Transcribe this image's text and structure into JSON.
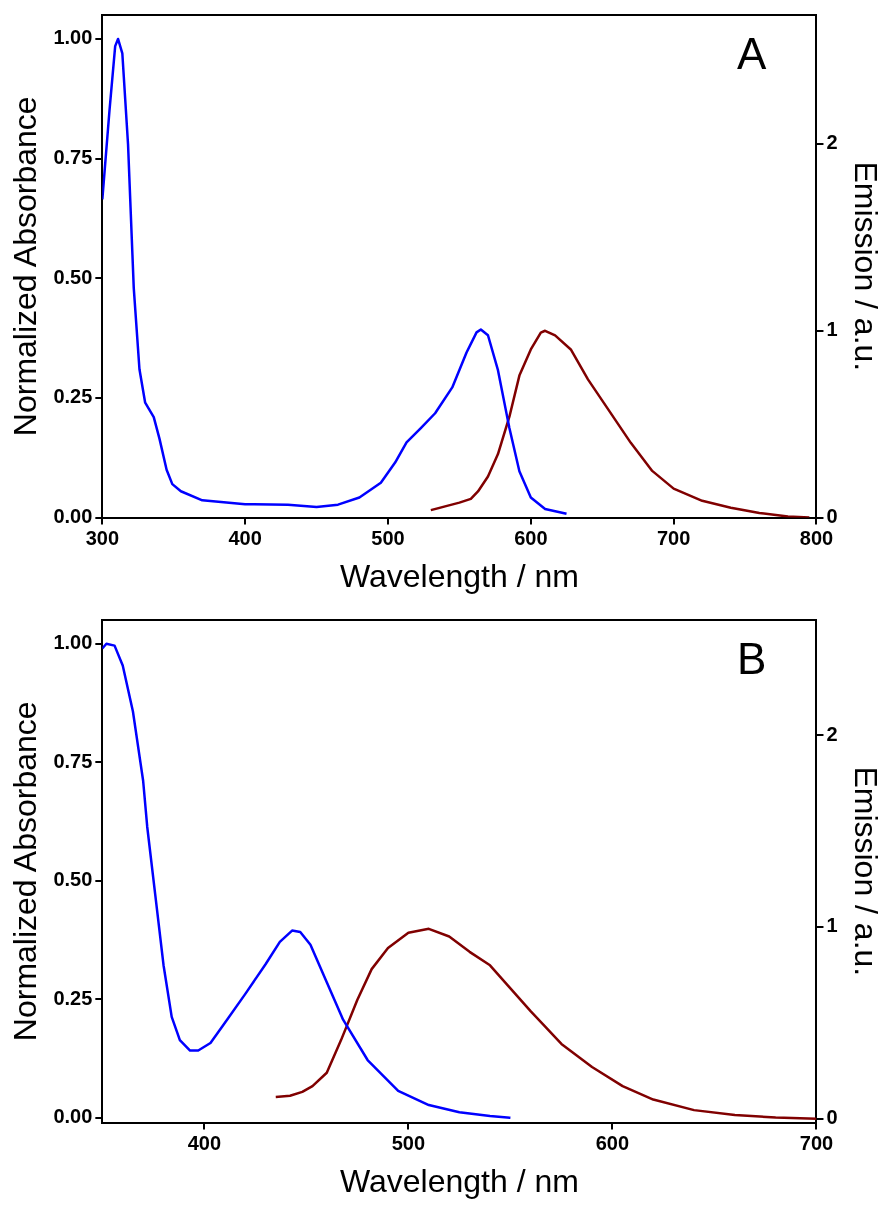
{
  "chart_data": [
    {
      "type": "line",
      "xlabel": "Wavelength / nm",
      "ylabel": "Normalized Absorbance",
      "y2label": "Emission / a.u.",
      "annotations": [
        "A"
      ],
      "xlim": [
        300,
        800
      ],
      "xticks": [
        300,
        400,
        500,
        600,
        700,
        800
      ],
      "ylim": [
        0,
        1.05
      ],
      "yticks": [
        {
          "value": 0,
          "label": "0.00"
        },
        {
          "value": 0.25,
          "label": "0.25"
        },
        {
          "value": 0.5,
          "label": "0.50"
        },
        {
          "value": 0.75,
          "label": "0.75"
        },
        {
          "value": 1,
          "label": "1.00"
        }
      ],
      "y2lim": [
        0,
        2.69
      ],
      "y2ticks": [
        0,
        1,
        2
      ],
      "series": [
        {
          "color": "#0000ff",
          "x": [
            300,
            305,
            309,
            311,
            314,
            318,
            322,
            326,
            330,
            336,
            340,
            345,
            349,
            355,
            370,
            400,
            430,
            450,
            465,
            480,
            495,
            505,
            513,
            523,
            533,
            545,
            555,
            562,
            565,
            570,
            577,
            585,
            592,
            600,
            610,
            625
          ],
          "values": [
            0.665,
            0.85,
            0.985,
            1.0,
            0.97,
            0.78,
            0.48,
            0.31,
            0.24,
            0.21,
            0.165,
            0.1,
            0.07,
            0.055,
            0.036,
            0.028,
            0.027,
            0.022,
            0.027,
            0.042,
            0.073,
            0.115,
            0.157,
            0.187,
            0.218,
            0.272,
            0.345,
            0.387,
            0.393,
            0.381,
            0.308,
            0.187,
            0.097,
            0.042,
            0.018,
            0.008
          ]
        },
        {
          "color": "#800000",
          "axis": "y2",
          "x": [
            530,
            540,
            550,
            558,
            563,
            570,
            577,
            585,
            592,
            600,
            607,
            610,
            617,
            628,
            640,
            655,
            670,
            685,
            700,
            720,
            740,
            760,
            780,
            795
          ],
          "values": [
            0.04,
            0.06,
            0.08,
            0.1,
            0.14,
            0.22,
            0.34,
            0.54,
            0.76,
            0.9,
            0.99,
            1.0,
            0.975,
            0.9,
            0.74,
            0.57,
            0.4,
            0.25,
            0.155,
            0.09,
            0.053,
            0.025,
            0.006,
            0
          ]
        }
      ]
    },
    {
      "type": "line",
      "xlabel": "Wavelength / nm",
      "ylabel": "Normalized Absorbance",
      "y2label": "Emission / a.u.",
      "annotations": [
        "B"
      ],
      "xlim": [
        350,
        700
      ],
      "xticks": [
        400,
        500,
        600,
        700
      ],
      "ylim": [
        -0.01,
        1.05
      ],
      "yticks": [
        {
          "value": 0,
          "label": "0.00"
        },
        {
          "value": 0.25,
          "label": "0.25"
        },
        {
          "value": 0.5,
          "label": "0.50"
        },
        {
          "value": 0.75,
          "label": "0.75"
        },
        {
          "value": 1,
          "label": "1.00"
        }
      ],
      "y2lim": [
        -0.02,
        2.6
      ],
      "y2ticks": [
        0,
        1,
        2
      ],
      "series": [
        {
          "color": "#0000ff",
          "x": [
            350,
            352,
            356,
            360,
            365,
            370,
            372,
            376,
            380,
            384,
            388,
            393,
            397,
            403,
            410,
            420,
            430,
            437,
            443,
            447,
            452,
            460,
            468,
            480,
            495,
            510,
            525,
            540,
            550
          ],
          "values": [
            0.99,
            1.0,
            0.996,
            0.954,
            0.857,
            0.711,
            0.614,
            0.468,
            0.322,
            0.213,
            0.164,
            0.142,
            0.142,
            0.158,
            0.2,
            0.261,
            0.324,
            0.371,
            0.395,
            0.392,
            0.365,
            0.286,
            0.207,
            0.122,
            0.057,
            0.027,
            0.012,
            0.004,
            0
          ]
        },
        {
          "color": "#800000",
          "axis": "y2",
          "x": [
            435,
            442,
            448,
            453,
            460,
            467,
            475,
            482,
            490,
            500,
            510,
            520,
            530,
            540,
            550,
            560,
            575,
            590,
            605,
            620,
            640,
            660,
            680,
            700
          ],
          "values": [
            0.114,
            0.12,
            0.14,
            0.17,
            0.24,
            0.41,
            0.62,
            0.78,
            0.89,
            0.97,
            0.99,
            0.95,
            0.87,
            0.8,
            0.68,
            0.56,
            0.39,
            0.27,
            0.17,
            0.1,
            0.045,
            0.02,
            0.006,
            0
          ]
        }
      ]
    }
  ]
}
